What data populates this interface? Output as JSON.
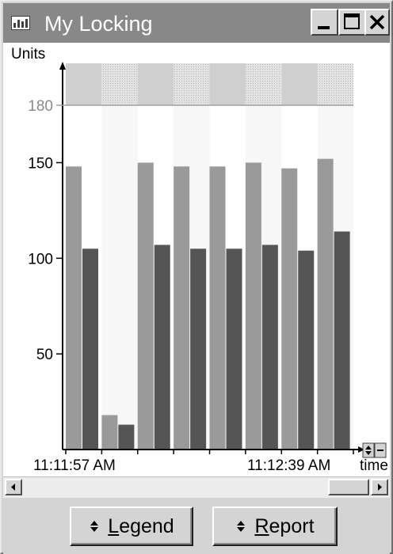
{
  "window": {
    "title": "My Locking",
    "controls": {
      "minimize": "minimize",
      "maximize": "maximize",
      "close": "close"
    }
  },
  "chart_data": {
    "type": "bar",
    "ylabel": "Units",
    "xlabel": "time",
    "ylim": [
      0,
      180
    ],
    "yticks": [
      "180",
      "150",
      "100",
      "50"
    ],
    "ytick_values": [
      180,
      150,
      100,
      50
    ],
    "x_start_label": "11:11:57 AM",
    "x_end_label": "11:12:39 AM",
    "grid": false,
    "series": [
      {
        "color": "#9a9a9a",
        "values": [
          148,
          18,
          150,
          148,
          148,
          150,
          147,
          152
        ]
      },
      {
        "color": "#555555",
        "values": [
          105,
          13,
          107,
          105,
          105,
          107,
          104,
          114
        ]
      }
    ],
    "bands": {
      "colors": [
        "#cfcfcf",
        "#e0e0e0"
      ],
      "pattern": "checkered on alternate periods"
    }
  },
  "scrollbar": {
    "left_arrow": "scroll-left",
    "right_arrow": "scroll-right"
  },
  "buttons": {
    "legend": "Legend",
    "report": "Report"
  },
  "colors": {
    "titlebar": "#888888",
    "face": "#d4d4d4"
  }
}
